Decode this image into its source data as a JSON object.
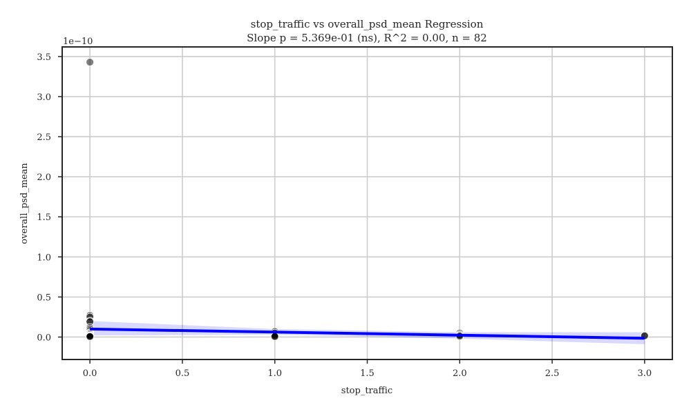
{
  "chart_data": {
    "type": "scatter",
    "title": "stop_traffic vs overall_psd_mean Regression",
    "subtitle": "Slope p = 5.369e-01 (ns), R^2 = 0.00, n = 82",
    "xlabel": "stop_traffic",
    "ylabel": "overall_psd_mean",
    "y_offset_label": "1e−10",
    "xlim": [
      -0.15,
      3.15
    ],
    "ylim": [
      -0.28,
      3.62
    ],
    "x_ticks": [
      0.0,
      0.5,
      1.0,
      1.5,
      2.0,
      2.5,
      3.0
    ],
    "x_tick_labels": [
      "0.0",
      "0.5",
      "1.0",
      "1.5",
      "2.0",
      "2.5",
      "3.0"
    ],
    "y_ticks": [
      0.0,
      0.5,
      1.0,
      1.5,
      2.0,
      2.5,
      3.0,
      3.5
    ],
    "y_tick_labels": [
      "0.0",
      "0.5",
      "1.0",
      "1.5",
      "2.0",
      "2.5",
      "3.0",
      "3.5"
    ],
    "grid": true,
    "point_color": "#000000",
    "line_color": "#0000ff",
    "band_color": "#0000ff",
    "points": [
      {
        "x": 0,
        "y": 3.43
      },
      {
        "x": 0,
        "y": 0.27
      },
      {
        "x": 0,
        "y": 0.25
      },
      {
        "x": 0,
        "y": 0.2
      },
      {
        "x": 0,
        "y": 0.19
      },
      {
        "x": 0,
        "y": 0.12
      },
      {
        "x": 0,
        "y": 0.1
      },
      {
        "x": 0,
        "y": 0.08
      },
      {
        "x": 0,
        "y": 0.06
      },
      {
        "x": 0,
        "y": 0.05
      },
      {
        "x": 0,
        "y": 0.04
      },
      {
        "x": 0,
        "y": 0.03
      },
      {
        "x": 0,
        "y": 0.02
      },
      {
        "x": 0,
        "y": 0.015
      },
      {
        "x": 0,
        "y": 0.01
      },
      {
        "x": 0,
        "y": 0.005
      },
      {
        "x": 1,
        "y": 0.07
      },
      {
        "x": 1,
        "y": 0.05
      },
      {
        "x": 1,
        "y": 0.03
      },
      {
        "x": 1,
        "y": 0.02
      },
      {
        "x": 1,
        "y": 0.01
      },
      {
        "x": 1,
        "y": 0.005
      },
      {
        "x": 2,
        "y": 0.05
      },
      {
        "x": 2,
        "y": 0.03
      },
      {
        "x": 2,
        "y": 0.02
      },
      {
        "x": 2,
        "y": 0.01
      },
      {
        "x": 3,
        "y": 0.02
      },
      {
        "x": 3,
        "y": 0.015
      }
    ],
    "regression": {
      "x": [
        0,
        3
      ],
      "y": [
        0.1,
        -0.015
      ]
    },
    "confidence_band": {
      "x": [
        0,
        1,
        2,
        3
      ],
      "upper": [
        0.2,
        0.1,
        0.06,
        0.06
      ],
      "lower": [
        0.02,
        0.03,
        -0.02,
        -0.09
      ]
    }
  }
}
